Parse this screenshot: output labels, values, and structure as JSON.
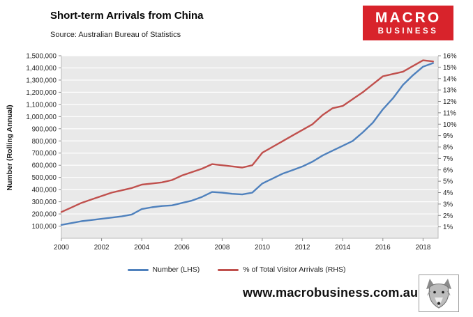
{
  "header": {
    "title": "Short-term Arrivals from China",
    "source": "Source: Australian Bureau of Statistics"
  },
  "logo": {
    "line1": "MACRO",
    "line2": "BUSINESS",
    "bg_color": "#D8232B",
    "text_color": "#FFFFFF"
  },
  "footer": {
    "url": "www.macrobusiness.com.au"
  },
  "chart_data": {
    "type": "line",
    "title": "Short-term Arrivals from China",
    "ylabel_left": "Number (Rolling Annual)",
    "plot_bg": "#E9E9E9",
    "grid_color": "#FFFFFF",
    "x": [
      2000,
      2000.5,
      2001,
      2001.5,
      2002,
      2002.5,
      2003,
      2003.5,
      2004,
      2004.5,
      2005,
      2005.5,
      2006,
      2006.5,
      2007,
      2007.5,
      2008,
      2008.5,
      2009,
      2009.5,
      2010,
      2010.5,
      2011,
      2011.5,
      2012,
      2012.5,
      2013,
      2013.5,
      2014,
      2014.5,
      2015,
      2015.5,
      2016,
      2016.5,
      2017,
      2017.5,
      2018,
      2018.5
    ],
    "series": [
      {
        "name": "Number (LHS)",
        "axis": "left",
        "color": "#4F81BD",
        "values": [
          110000,
          125000,
          140000,
          150000,
          160000,
          170000,
          180000,
          195000,
          240000,
          255000,
          265000,
          270000,
          290000,
          310000,
          340000,
          380000,
          375000,
          365000,
          360000,
          375000,
          450000,
          490000,
          530000,
          560000,
          590000,
          630000,
          680000,
          720000,
          760000,
          800000,
          870000,
          950000,
          1060000,
          1150000,
          1260000,
          1340000,
          1410000,
          1440000
        ]
      },
      {
        "name": "% of Total Visitor Arrivals (RHS)",
        "axis": "right",
        "color": "#C0504D",
        "values": [
          2.3,
          2.7,
          3.1,
          3.4,
          3.7,
          4.0,
          4.2,
          4.4,
          4.7,
          4.8,
          4.9,
          5.1,
          5.5,
          5.8,
          6.1,
          6.5,
          6.4,
          6.3,
          6.2,
          6.4,
          7.5,
          8.0,
          8.5,
          9.0,
          9.5,
          10.0,
          10.8,
          11.4,
          11.6,
          12.2,
          12.8,
          13.5,
          14.2,
          14.4,
          14.6,
          15.1,
          15.6,
          15.5
        ]
      }
    ],
    "left_axis": {
      "min": 0,
      "max": 1500000,
      "tick_step": 100000,
      "tick_labels": [
        "100,000",
        "200,000",
        "300,000",
        "400,000",
        "500,000",
        "600,000",
        "700,000",
        "800,000",
        "900,000",
        "1,000,000",
        "1,100,000",
        "1,200,000",
        "1,300,000",
        "1,400,000",
        "1,500,000"
      ]
    },
    "right_axis": {
      "min": 0,
      "max": 16,
      "tick_step": 1,
      "tick_labels": [
        "1%",
        "2%",
        "3%",
        "4%",
        "5%",
        "6%",
        "7%",
        "8%",
        "9%",
        "10%",
        "11%",
        "12%",
        "13%",
        "14%",
        "15%",
        "16%"
      ]
    },
    "x_axis": {
      "min": 2000,
      "max": 2018.75,
      "tick_values": [
        2000,
        2002,
        2004,
        2006,
        2008,
        2010,
        2012,
        2014,
        2016,
        2018
      ],
      "tick_labels": [
        "2000",
        "2002",
        "2004",
        "2006",
        "2008",
        "2010",
        "2012",
        "2014",
        "2016",
        "2018"
      ]
    },
    "legend": [
      "Number (LHS)",
      "% of Total Visitor Arrivals (RHS)"
    ],
    "legend_position": "bottom",
    "grid": true
  }
}
